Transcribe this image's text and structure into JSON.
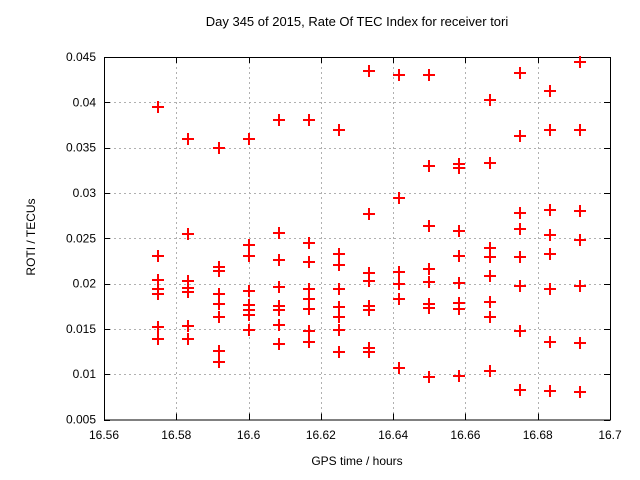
{
  "figure": {
    "background_color": "#ffffff",
    "text_color": "#000000"
  },
  "chart_data": {
    "type": "scatter",
    "title": "Day 345 of 2015, Rate Of TEC Index for receiver tori",
    "xlabel": "GPS time / hours",
    "ylabel": "ROTI / TECUs",
    "xlim": [
      16.56,
      16.7
    ],
    "ylim": [
      0.005,
      0.045
    ],
    "xticks": [
      16.56,
      16.58,
      16.6,
      16.62,
      16.64,
      16.66,
      16.68,
      16.7
    ],
    "xtick_labels": [
      "16.56",
      "16.58",
      "16.6",
      "16.62",
      "16.64",
      "16.66",
      "16.68",
      "16.7"
    ],
    "yticks": [
      0.005,
      0.01,
      0.015,
      0.02,
      0.025,
      0.03,
      0.035,
      0.04,
      0.045
    ],
    "ytick_labels": [
      "0.005",
      "0.01",
      "0.015",
      "0.02",
      "0.025",
      "0.03",
      "0.035",
      "0.04",
      "0.045"
    ],
    "grid": true,
    "grid_style": "dashed",
    "legend_position": "none",
    "marker": "plus",
    "marker_color": "#ff0000",
    "grid_color": "#b0b0b0",
    "axis_color": "#000000",
    "points": [
      [
        16.575,
        0.0395
      ],
      [
        16.575,
        0.023
      ],
      [
        16.575,
        0.0204
      ],
      [
        16.575,
        0.0194
      ],
      [
        16.575,
        0.0189
      ],
      [
        16.575,
        0.0152
      ],
      [
        16.575,
        0.0139
      ],
      [
        16.5833,
        0.036
      ],
      [
        16.5833,
        0.0255
      ],
      [
        16.5833,
        0.0203
      ],
      [
        16.5833,
        0.0195
      ],
      [
        16.5833,
        0.0191
      ],
      [
        16.5833,
        0.0153
      ],
      [
        16.5833,
        0.0139
      ],
      [
        16.5917,
        0.035
      ],
      [
        16.5917,
        0.0218
      ],
      [
        16.5917,
        0.0214
      ],
      [
        16.5917,
        0.0189
      ],
      [
        16.5917,
        0.0178
      ],
      [
        16.5917,
        0.0163
      ],
      [
        16.5917,
        0.0126
      ],
      [
        16.5917,
        0.0114
      ],
      [
        16.6,
        0.036
      ],
      [
        16.6,
        0.0243
      ],
      [
        16.6,
        0.023
      ],
      [
        16.6,
        0.0192
      ],
      [
        16.6,
        0.0176
      ],
      [
        16.6,
        0.0171
      ],
      [
        16.6,
        0.0165
      ],
      [
        16.6,
        0.0149
      ],
      [
        16.6083,
        0.038
      ],
      [
        16.6083,
        0.0256
      ],
      [
        16.6083,
        0.0226
      ],
      [
        16.6083,
        0.0196
      ],
      [
        16.6083,
        0.0175
      ],
      [
        16.6083,
        0.0171
      ],
      [
        16.6083,
        0.0154
      ],
      [
        16.6083,
        0.0133
      ],
      [
        16.6167,
        0.0381
      ],
      [
        16.6167,
        0.0245
      ],
      [
        16.6167,
        0.0224
      ],
      [
        16.6167,
        0.0194
      ],
      [
        16.6167,
        0.0183
      ],
      [
        16.6167,
        0.0172
      ],
      [
        16.6167,
        0.0148
      ],
      [
        16.6167,
        0.0136
      ],
      [
        16.625,
        0.037
      ],
      [
        16.625,
        0.0233
      ],
      [
        16.625,
        0.0221
      ],
      [
        16.625,
        0.0194
      ],
      [
        16.625,
        0.0174
      ],
      [
        16.625,
        0.0163
      ],
      [
        16.625,
        0.0149
      ],
      [
        16.625,
        0.0124
      ],
      [
        16.6333,
        0.0435
      ],
      [
        16.6333,
        0.0277
      ],
      [
        16.6333,
        0.0212
      ],
      [
        16.6333,
        0.0203
      ],
      [
        16.6333,
        0.0175
      ],
      [
        16.6333,
        0.0171
      ],
      [
        16.6333,
        0.0129
      ],
      [
        16.6333,
        0.0125
      ],
      [
        16.6417,
        0.043
      ],
      [
        16.6417,
        0.0294
      ],
      [
        16.6417,
        0.0213
      ],
      [
        16.6417,
        0.02
      ],
      [
        16.6417,
        0.0183
      ],
      [
        16.6417,
        0.0107
      ],
      [
        16.65,
        0.043
      ],
      [
        16.65,
        0.033
      ],
      [
        16.65,
        0.0264
      ],
      [
        16.65,
        0.0216
      ],
      [
        16.65,
        0.0202
      ],
      [
        16.65,
        0.0177
      ],
      [
        16.65,
        0.0173
      ],
      [
        16.65,
        0.0097
      ],
      [
        16.6583,
        0.0332
      ],
      [
        16.6583,
        0.0328
      ],
      [
        16.6583,
        0.0258
      ],
      [
        16.6583,
        0.023
      ],
      [
        16.6583,
        0.0201
      ],
      [
        16.6583,
        0.0179
      ],
      [
        16.6583,
        0.0172
      ],
      [
        16.6583,
        0.0098
      ],
      [
        16.6667,
        0.0403
      ],
      [
        16.6667,
        0.0333
      ],
      [
        16.6667,
        0.0239
      ],
      [
        16.6667,
        0.0229
      ],
      [
        16.6667,
        0.0208
      ],
      [
        16.6667,
        0.018
      ],
      [
        16.6667,
        0.0163
      ],
      [
        16.6667,
        0.0103
      ],
      [
        16.675,
        0.0432
      ],
      [
        16.675,
        0.0363
      ],
      [
        16.675,
        0.0278
      ],
      [
        16.675,
        0.026
      ],
      [
        16.675,
        0.0229
      ],
      [
        16.675,
        0.0197
      ],
      [
        16.675,
        0.0148
      ],
      [
        16.675,
        0.0083
      ],
      [
        16.6833,
        0.0413
      ],
      [
        16.6833,
        0.037
      ],
      [
        16.6833,
        0.0281
      ],
      [
        16.6833,
        0.0254
      ],
      [
        16.6833,
        0.0233
      ],
      [
        16.6833,
        0.0194
      ],
      [
        16.6833,
        0.0135
      ],
      [
        16.6833,
        0.0082
      ],
      [
        16.6917,
        0.0444
      ],
      [
        16.6917,
        0.037
      ],
      [
        16.6917,
        0.028
      ],
      [
        16.6917,
        0.0248
      ],
      [
        16.6917,
        0.0197
      ],
      [
        16.6917,
        0.0134
      ],
      [
        16.6917,
        0.008
      ]
    ]
  }
}
